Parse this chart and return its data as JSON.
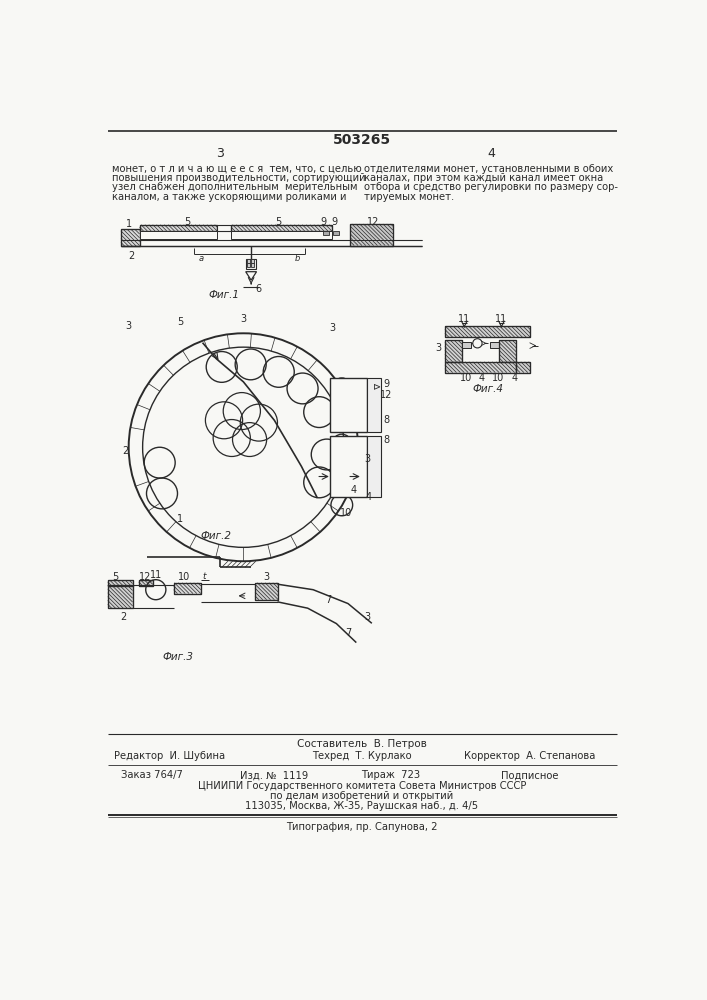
{
  "page_width": 7.07,
  "page_height": 10.0,
  "bg_color": "#f8f8f5",
  "line_color": "#2a2a2a",
  "patent_number": "503265",
  "header_text_left": "монет, о т л и ч а ю щ е е с я  тем, что, с целью\nповышения производительности, сортирующий\nузел снабжен дополнительным  мерительным\nканалом, а также ускоряющими роликами и",
  "header_text_right": "отделителями монет, установленными в обоих\nканалах, при этом каждый канал имеет окна\nотбора и средство регулировки по размеру сор-\nтируемых монет.",
  "fig1_label": "Фиг.1",
  "fig2_label": "Фиг.2",
  "fig3_label": "Фиг.3",
  "fig4_label": "Фиг.4",
  "footer_sestavitel": "Составитель  В. Петров",
  "footer_editor": "Редактор  И. Шубина",
  "footer_tehred": "Техред  Т. Курлако",
  "footer_korrektor": "Корректор  А. Степанова",
  "footer_zakaz": "Заказ 764/7",
  "footer_izd": "Изд. №  1119",
  "footer_tirazh": "Тираж  723",
  "footer_podpisnoe": "Подписное",
  "footer_tsniip": "ЦНИИПИ Государственного комитета Совета Министров СССР",
  "footer_po_delam": "по делам изобретений и открытий",
  "footer_address": "113035, Москва, Ж-35, Раушская наб., д. 4/5",
  "footer_tipografia": "Типография, пр. Сапунова, 2"
}
